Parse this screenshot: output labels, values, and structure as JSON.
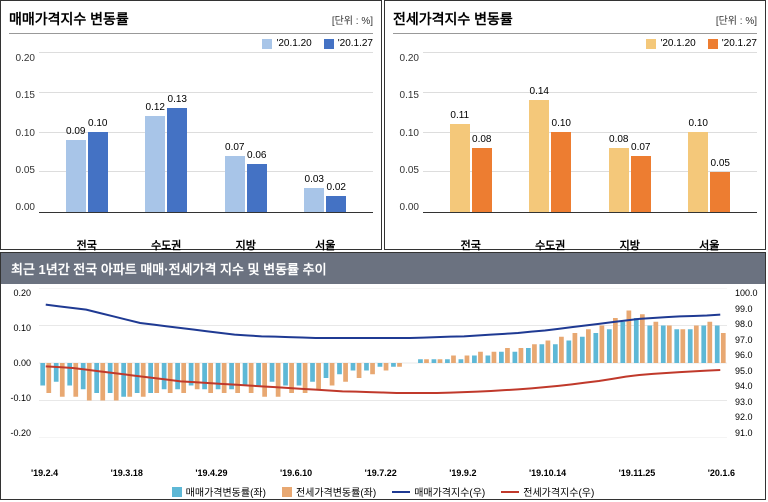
{
  "chart1": {
    "title": "매매가격지수 변동률",
    "unit": "[단위 : %]",
    "legend": [
      {
        "label": "'20.1.20",
        "color": "#a8c5e8"
      },
      {
        "label": "'20.1.27",
        "color": "#4472c4"
      }
    ],
    "ylim": [
      0,
      0.2
    ],
    "yticks": [
      "0.00",
      "0.05",
      "0.10",
      "0.15",
      "0.20"
    ],
    "categories": [
      "전국",
      "수도권",
      "지방",
      "서울"
    ],
    "series1": [
      0.09,
      0.12,
      0.07,
      0.03
    ],
    "series2": [
      0.1,
      0.13,
      0.06,
      0.02
    ],
    "labels1": [
      "0.09",
      "0.12",
      "0.07",
      "0.03"
    ],
    "labels2": [
      "0.10",
      "0.13",
      "0.06",
      "0.02"
    ]
  },
  "chart2": {
    "title": "전세가격지수 변동률",
    "unit": "[단위 : %]",
    "legend": [
      {
        "label": "'20.1.20",
        "color": "#f4c87a"
      },
      {
        "label": "'20.1.27",
        "color": "#ed7d31"
      }
    ],
    "ylim": [
      0,
      0.2
    ],
    "yticks": [
      "0.00",
      "0.05",
      "0.10",
      "0.15",
      "0.20"
    ],
    "categories": [
      "전국",
      "수도권",
      "지방",
      "서울"
    ],
    "series1": [
      0.11,
      0.14,
      0.08,
      0.1
    ],
    "series2": [
      0.08,
      0.1,
      0.07,
      0.05
    ],
    "labels1": [
      "0.11",
      "0.14",
      "0.08",
      "0.10"
    ],
    "labels2": [
      "0.08",
      "0.10",
      "0.07",
      "0.05"
    ]
  },
  "chart3": {
    "title": "최근 1년간 전국 아파트 매매·전세가격 지수 및 변동률 추이",
    "ylim_l": [
      -0.2,
      0.2
    ],
    "yticks_l": [
      "-0.20",
      "-0.10",
      "0.00",
      "0.10",
      "0.20"
    ],
    "ylim_r": [
      91.0,
      100.0
    ],
    "yticks_r": [
      "91.0",
      "92.0",
      "93.0",
      "94.0",
      "95.0",
      "96.0",
      "97.0",
      "98.0",
      "99.0",
      "100.0"
    ],
    "xticks": [
      "'19.2.4",
      "'19.3.18",
      "'19.4.29",
      "'19.6.10",
      "'19.7.22",
      "'19.9.2",
      "'19.10.14",
      "'19.11.25",
      "'20.1.6"
    ],
    "legend": [
      {
        "label": "매매가격변동률(좌)",
        "type": "box",
        "color": "#5eb8d6"
      },
      {
        "label": "전세가격변동률(좌)",
        "type": "box",
        "color": "#e8a872"
      },
      {
        "label": "매매가격지수(우)",
        "type": "line",
        "color": "#1f3a93"
      },
      {
        "label": "전세가격지수(우)",
        "type": "line",
        "color": "#c0392b"
      }
    ],
    "bars_sale": [
      -0.06,
      -0.05,
      -0.06,
      -0.07,
      -0.08,
      -0.08,
      -0.09,
      -0.08,
      -0.08,
      -0.07,
      -0.07,
      -0.06,
      -0.07,
      -0.07,
      -0.07,
      -0.06,
      -0.06,
      -0.05,
      -0.06,
      -0.06,
      -0.05,
      -0.04,
      -0.03,
      -0.02,
      -0.02,
      -0.01,
      -0.01,
      0.0,
      0.01,
      0.01,
      0.01,
      0.01,
      0.02,
      0.02,
      0.03,
      0.03,
      0.04,
      0.05,
      0.05,
      0.06,
      0.07,
      0.08,
      0.09,
      0.11,
      0.12,
      0.1,
      0.1,
      0.09,
      0.09,
      0.1,
      0.1
    ],
    "bars_rent": [
      -0.08,
      -0.09,
      -0.09,
      -0.1,
      -0.1,
      -0.1,
      -0.09,
      -0.09,
      -0.08,
      -0.08,
      -0.08,
      -0.07,
      -0.08,
      -0.08,
      -0.08,
      -0.08,
      -0.09,
      -0.09,
      -0.08,
      -0.08,
      -0.07,
      -0.06,
      -0.05,
      -0.04,
      -0.03,
      -0.02,
      -0.01,
      0.0,
      0.01,
      0.01,
      0.02,
      0.02,
      0.03,
      0.03,
      0.04,
      0.04,
      0.05,
      0.06,
      0.07,
      0.08,
      0.09,
      0.1,
      0.12,
      0.14,
      0.13,
      0.11,
      0.1,
      0.09,
      0.1,
      0.11,
      0.08
    ],
    "line_sale": [
      99.0,
      98.9,
      98.8,
      98.7,
      98.5,
      98.3,
      98.1,
      97.9,
      97.8,
      97.7,
      97.6,
      97.5,
      97.4,
      97.3,
      97.2,
      97.15,
      97.1,
      97.08,
      97.05,
      97.03,
      97.0,
      97.0,
      97.0,
      97.0,
      97.0,
      97.0,
      97.0,
      97.0,
      97.02,
      97.05,
      97.08,
      97.1,
      97.15,
      97.2,
      97.25,
      97.3,
      97.38,
      97.45,
      97.55,
      97.65,
      97.75,
      97.85,
      97.95,
      98.05,
      98.15,
      98.2,
      98.25,
      98.3,
      98.32,
      98.35,
      98.4
    ],
    "line_rent": [
      95.3,
      95.25,
      95.2,
      95.1,
      95.0,
      94.9,
      94.8,
      94.7,
      94.6,
      94.5,
      94.4,
      94.35,
      94.3,
      94.25,
      94.2,
      94.15,
      94.1,
      94.05,
      94.0,
      93.95,
      93.9,
      93.85,
      93.8,
      93.78,
      93.75,
      93.73,
      93.7,
      93.7,
      93.7,
      93.7,
      93.72,
      93.75,
      93.78,
      93.82,
      93.87,
      93.92,
      93.98,
      94.05,
      94.13,
      94.22,
      94.32,
      94.42,
      94.55,
      94.68,
      94.78,
      94.85,
      94.9,
      94.95,
      95.0,
      95.04,
      95.08
    ],
    "colors": {
      "bar_sale": "#5eb8d6",
      "bar_rent": "#e8a872",
      "line_sale": "#1f3a93",
      "line_rent": "#c0392b",
      "grid": "#e8e8e8"
    }
  }
}
